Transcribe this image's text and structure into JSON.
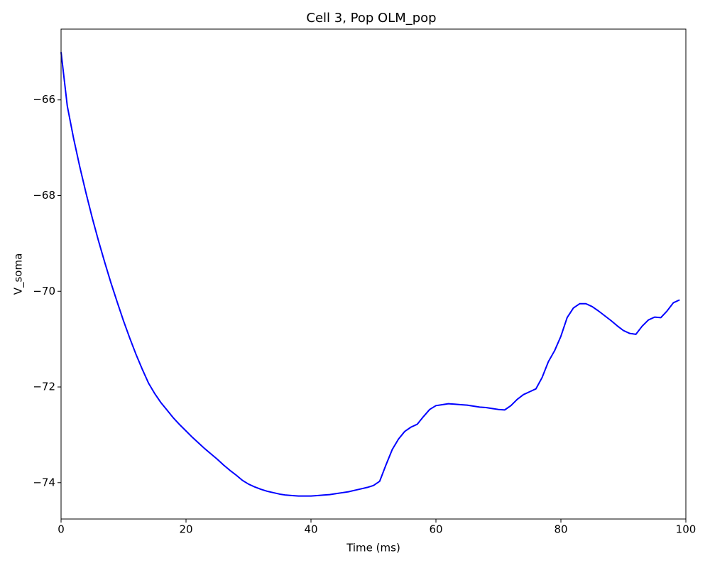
{
  "chart_data": {
    "type": "line",
    "title": "Cell 3, Pop OLM_pop",
    "x_label": "Time (ms)",
    "y_label": "V_soma",
    "x": [
      0,
      1,
      2,
      3,
      4,
      5,
      6,
      7,
      8,
      9,
      10,
      11,
      12,
      13,
      14,
      15,
      16,
      17,
      18,
      19,
      20,
      21,
      22,
      23,
      24,
      25,
      26,
      27,
      28,
      29,
      30,
      31,
      32,
      33,
      34,
      35,
      36,
      37,
      38,
      39,
      40,
      41,
      42,
      43,
      44,
      45,
      46,
      47,
      48,
      49,
      50,
      51,
      52,
      53,
      54,
      55,
      56,
      57,
      58,
      59,
      60,
      61,
      62,
      63,
      64,
      65,
      66,
      67,
      68,
      69,
      70,
      71,
      72,
      73,
      74,
      75,
      76,
      77,
      78,
      79,
      80,
      81,
      82,
      83,
      84,
      85,
      86,
      87,
      88,
      89,
      90,
      91,
      92,
      93,
      94,
      95,
      96,
      97,
      98,
      99
    ],
    "series": [
      {
        "name": "V_soma",
        "color": "#0000ff",
        "values": [
          -65.0,
          -66.13,
          -66.8,
          -67.4,
          -67.95,
          -68.47,
          -68.95,
          -69.4,
          -69.83,
          -70.23,
          -70.62,
          -70.98,
          -71.32,
          -71.63,
          -71.92,
          -72.14,
          -72.33,
          -72.49,
          -72.65,
          -72.79,
          -72.92,
          -73.05,
          -73.17,
          -73.29,
          -73.4,
          -73.51,
          -73.63,
          -73.74,
          -73.84,
          -73.95,
          -74.03,
          -74.09,
          -74.14,
          -74.18,
          -74.21,
          -74.24,
          -74.26,
          -74.27,
          -74.28,
          -74.28,
          -74.28,
          -74.27,
          -74.26,
          -74.25,
          -74.23,
          -74.21,
          -74.19,
          -74.16,
          -74.13,
          -74.1,
          -74.06,
          -73.97,
          -73.63,
          -73.31,
          -73.09,
          -72.93,
          -72.84,
          -72.78,
          -72.62,
          -72.47,
          -72.39,
          -72.37,
          -72.35,
          -72.36,
          -72.37,
          -72.38,
          -72.4,
          -72.42,
          -72.43,
          -72.45,
          -72.47,
          -72.48,
          -72.39,
          -72.26,
          -72.16,
          -72.1,
          -72.04,
          -71.8,
          -71.47,
          -71.24,
          -70.94,
          -70.55,
          -70.35,
          -70.26,
          -70.26,
          -70.32,
          -70.41,
          -70.51,
          -70.61,
          -70.72,
          -70.82,
          -70.88,
          -70.9,
          -70.73,
          -70.6,
          -70.54,
          -70.55,
          -70.41,
          -70.24,
          -70.18
        ]
      }
    ],
    "xlim": [
      0,
      100
    ],
    "xticks": [
      0,
      20,
      40,
      60,
      80,
      100
    ],
    "ylim": [
      -74.76,
      -64.52
    ],
    "yticks": [
      {
        "value": -74,
        "label": "−74"
      },
      {
        "value": -72,
        "label": "−72"
      },
      {
        "value": -70,
        "label": "−70"
      },
      {
        "value": -68,
        "label": "−68"
      },
      {
        "value": -66,
        "label": "−66"
      }
    ]
  }
}
